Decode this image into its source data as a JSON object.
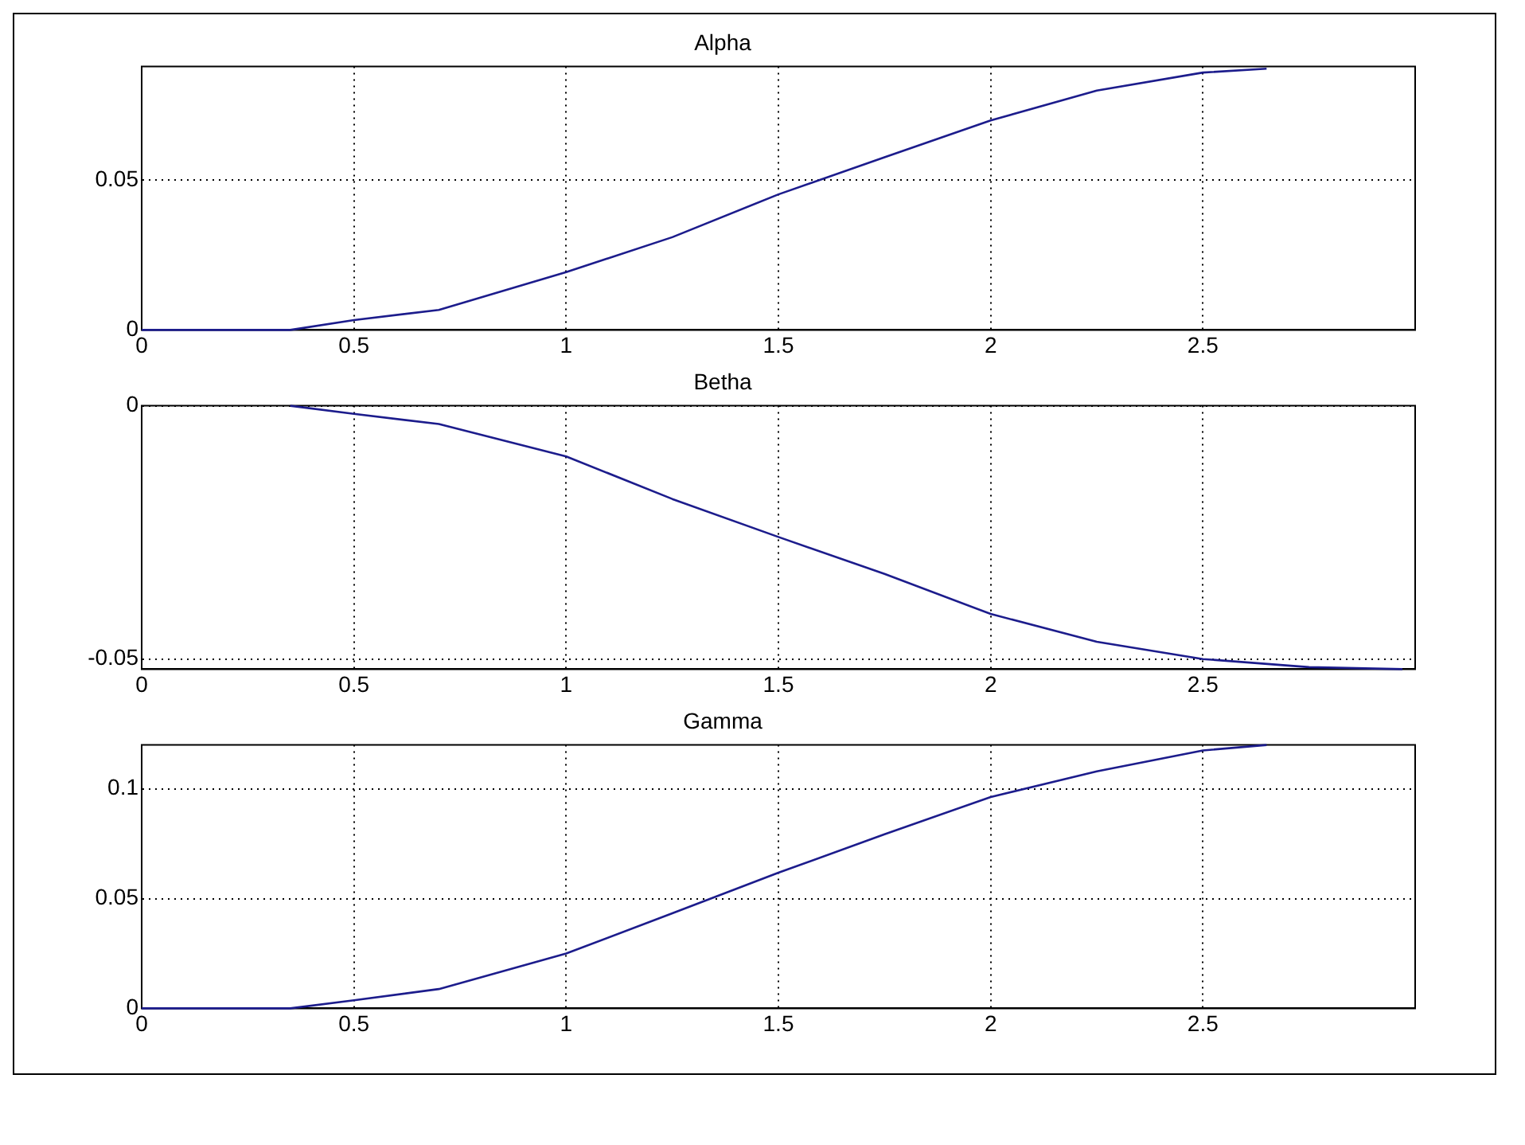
{
  "chart_data": [
    {
      "type": "line",
      "title": "Alpha",
      "xlim": [
        0,
        3
      ],
      "xticks": [
        0,
        0.5,
        1,
        1.5,
        2,
        2.5
      ],
      "ylim": [
        0,
        0.088
      ],
      "yticks": [
        0,
        0.05
      ],
      "grid": true,
      "series": [
        {
          "color": "#1c1c8c",
          "x": [
            0,
            0.35,
            0.5,
            0.7,
            1,
            1.25,
            1.5,
            1.75,
            2,
            2.25,
            2.5,
            2.65
          ],
          "values": [
            0,
            0,
            0.0033,
            0.0067,
            0.0193,
            0.031,
            0.0453,
            0.0577,
            0.07,
            0.08,
            0.086,
            0.0873
          ]
        }
      ]
    },
    {
      "type": "line",
      "title": "Betha",
      "xlim": [
        0,
        3
      ],
      "xticks": [
        0,
        0.5,
        1,
        1.5,
        2,
        2.5
      ],
      "ylim": [
        -0.052,
        0
      ],
      "yticks": [
        -0.05,
        0
      ],
      "grid": true,
      "series": [
        {
          "color": "#1c1c8c",
          "x": [
            0.35,
            0.5,
            0.7,
            1,
            1.25,
            1.5,
            1.75,
            2,
            2.25,
            2.5,
            2.75,
            2.97
          ],
          "values": [
            0,
            -0.0016,
            -0.0036,
            -0.01,
            -0.0184,
            -0.0259,
            -0.0332,
            -0.0411,
            -0.0466,
            -0.05,
            -0.0516,
            -0.052
          ]
        }
      ]
    },
    {
      "type": "line",
      "title": "Gamma",
      "xlim": [
        0,
        3
      ],
      "xticks": [
        0,
        0.5,
        1,
        1.5,
        2,
        2.5
      ],
      "ylim": [
        0,
        0.12
      ],
      "yticks": [
        0,
        0.05,
        0.1
      ],
      "grid": true,
      "series": [
        {
          "color": "#1c1c8c",
          "x": [
            0,
            0.35,
            0.5,
            0.7,
            1,
            1.25,
            1.5,
            1.75,
            2,
            2.25,
            2.5,
            2.65
          ],
          "values": [
            0,
            0,
            0.0037,
            0.0088,
            0.025,
            0.0433,
            0.0618,
            0.0793,
            0.0963,
            0.108,
            0.1175,
            0.12
          ]
        }
      ]
    }
  ]
}
